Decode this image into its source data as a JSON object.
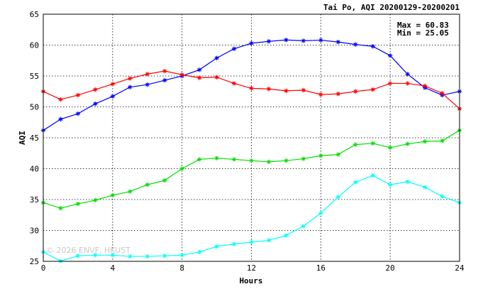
{
  "chart_data": {
    "type": "line",
    "title": "Tai Po, AQI 20200129-20200201",
    "xlabel": "Hours",
    "ylabel": "AQI",
    "xlim": [
      0,
      24
    ],
    "ylim": [
      25,
      65
    ],
    "x_ticks": [
      0,
      4,
      8,
      12,
      16,
      20,
      24
    ],
    "y_ticks": [
      25,
      30,
      35,
      40,
      45,
      50,
      55,
      60,
      65
    ],
    "grid": true,
    "annotations": {
      "max": "Max = 60.83",
      "min": "Min = 25.05"
    },
    "watermark": "© 2026 ENVF, HKUST",
    "x": [
      0,
      1,
      2,
      3,
      4,
      5,
      6,
      7,
      8,
      9,
      10,
      11,
      12,
      13,
      14,
      15,
      16,
      17,
      18,
      19,
      20,
      21,
      22,
      23,
      24
    ],
    "series": [
      {
        "color": "#0000ff",
        "values": [
          46.2,
          48.0,
          48.9,
          50.5,
          51.7,
          53.2,
          53.6,
          54.3,
          55.0,
          56.0,
          57.9,
          59.4,
          60.3,
          60.6,
          60.83,
          60.7,
          60.8,
          60.5,
          60.1,
          59.8,
          58.3,
          55.3,
          53.1,
          51.9,
          52.5
        ]
      },
      {
        "color": "#ff0000",
        "values": [
          52.5,
          51.2,
          51.9,
          52.8,
          53.7,
          54.6,
          55.3,
          55.8,
          55.2,
          54.7,
          54.8,
          53.8,
          53.0,
          52.9,
          52.6,
          52.7,
          52.0,
          52.1,
          52.5,
          52.8,
          53.8,
          53.8,
          53.4,
          52.2,
          49.7
        ]
      },
      {
        "color": "#00dd00",
        "values": [
          34.5,
          33.6,
          34.3,
          34.9,
          35.7,
          36.3,
          37.4,
          38.1,
          40.0,
          41.5,
          41.7,
          41.5,
          41.3,
          41.1,
          41.3,
          41.6,
          42.1,
          42.3,
          43.9,
          44.1,
          43.4,
          44.0,
          44.4,
          44.5,
          46.2
        ]
      },
      {
        "color": "#00ffff",
        "values": [
          26.5,
          25.05,
          25.9,
          26.0,
          26.0,
          25.8,
          25.8,
          25.9,
          26.0,
          26.5,
          27.4,
          27.8,
          28.1,
          28.4,
          29.2,
          30.7,
          32.8,
          35.4,
          37.8,
          38.9,
          37.4,
          37.9,
          37.0,
          35.5,
          34.5
        ]
      }
    ]
  }
}
